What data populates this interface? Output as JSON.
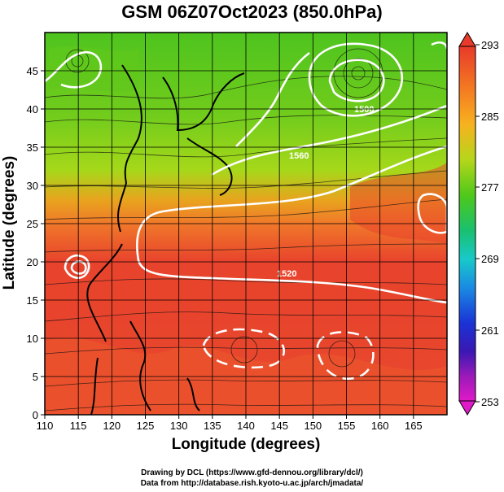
{
  "title": "GSM 06Z07Oct2023 (850.0hPa)",
  "xaxis": {
    "label": "Longitude (degrees)",
    "range": [
      110,
      170
    ],
    "ticks": [
      "110",
      "115",
      "120",
      "125",
      "130",
      "135",
      "140",
      "145",
      "150",
      "155",
      "160",
      "165"
    ]
  },
  "yaxis": {
    "label": "Latitude  (degrees)",
    "range": [
      0,
      50
    ],
    "ticks": [
      "0",
      "5",
      "10",
      "15",
      "20",
      "25",
      "30",
      "35",
      "40",
      "45"
    ]
  },
  "colorbar": {
    "ticks": [
      "293",
      "285",
      "277",
      "269",
      "261",
      "253"
    ],
    "colors": [
      "#e83a2a",
      "#f47a22",
      "#f7b21f",
      "#c6dc18",
      "#4fc81a",
      "#19c070",
      "#18c9c9",
      "#1a8be3",
      "#1a33d6",
      "#3a18b3",
      "#9a1ab8",
      "#e01ac8"
    ]
  },
  "contours": {
    "labels": [
      "1500",
      "1560",
      "1520"
    ]
  },
  "credits": {
    "line1": "Drawing by DCL (https://www.gfd-dennou.org/library/dcl/)",
    "line2": "Data from http://database.rish.kyoto-u.ac.jp/arch/jmadata/"
  }
}
